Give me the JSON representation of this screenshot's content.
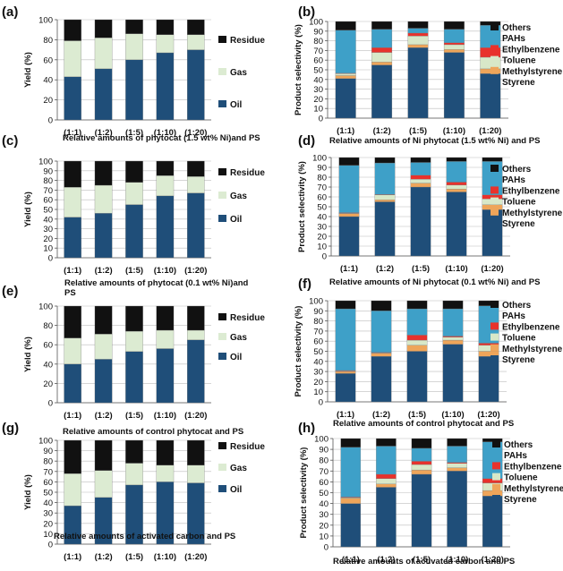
{
  "figure": {
    "panels": [
      {
        "label": "(a)",
        "chart": 0
      },
      {
        "label": "(b)",
        "chart": 1
      },
      {
        "label": "(c)",
        "chart": 2
      },
      {
        "label": "(d)",
        "chart": 3
      },
      {
        "label": "(e)",
        "chart": 4
      },
      {
        "label": "(f)",
        "chart": 5
      },
      {
        "label": "(g)",
        "chart": 6
      },
      {
        "label": "(h)",
        "chart": 7
      }
    ]
  },
  "colors": {
    "Residue": "#111111",
    "Gas": "#dcebd2",
    "Oil": "#1f4e79",
    "Others": "#111111",
    "PAHs": "#3ea0c8",
    "Ethylbenzene": "#e8322c",
    "Toluene": "#d8e8c8",
    "Methylstyrene": "#eea55a",
    "Styrene": "#1f4e79"
  },
  "chart_data": [
    {
      "type": "bar",
      "stacked": true,
      "title": "(a)",
      "xlabel": "Relative amounts of phytocat (1.5 wt% Ni)and PS",
      "ylabel": "Yield (%)",
      "ylim": [
        0,
        100
      ],
      "yticks": [
        0,
        20,
        40,
        60,
        80,
        100
      ],
      "categories": [
        "(1:1)",
        "(1:2)",
        "(1:5)",
        "(1:10)",
        "(1:20)"
      ],
      "series": [
        {
          "name": "Oil",
          "values": [
            43,
            51,
            60,
            67,
            70
          ]
        },
        {
          "name": "Gas",
          "values": [
            36,
            31,
            26,
            18,
            15
          ]
        },
        {
          "name": "Residue",
          "values": [
            21,
            18,
            14,
            15,
            15
          ]
        }
      ]
    },
    {
      "type": "bar",
      "stacked": true,
      "title": "(b)",
      "xlabel": "Relative amounts of Ni phytocat (1.5 wt% Ni) and PS",
      "ylabel": "Product selectivity (%)",
      "ylim": [
        0,
        100
      ],
      "yticks": [
        0,
        10,
        20,
        30,
        40,
        50,
        60,
        70,
        80,
        90,
        100
      ],
      "categories": [
        "(1:1)",
        "(1:2)",
        "(1:5)",
        "(1:10)",
        "(1:20)"
      ],
      "series": [
        {
          "name": "Styrene",
          "values": [
            41,
            55,
            73,
            68,
            46
          ]
        },
        {
          "name": "Methylstyrene",
          "values": [
            3,
            3,
            3,
            3,
            5
          ]
        },
        {
          "name": "Toluene",
          "values": [
            2,
            10,
            9,
            5,
            12
          ]
        },
        {
          "name": "Ethylbenzene",
          "values": [
            0.5,
            5,
            3,
            2,
            10
          ]
        },
        {
          "name": "PAHs",
          "values": [
            44.5,
            19,
            5,
            14,
            23
          ]
        },
        {
          "name": "Others",
          "values": [
            9,
            8,
            7,
            8,
            4
          ]
        }
      ]
    },
    {
      "type": "bar",
      "stacked": true,
      "title": "(c)",
      "xlabel": "Relative amounts of phytocat (0.1 wt% Ni)and PS",
      "ylabel": "Yield (%)",
      "ylim": [
        0,
        100
      ],
      "yticks": [
        0,
        10,
        20,
        30,
        40,
        50,
        60,
        70,
        80,
        90,
        100
      ],
      "categories": [
        "(1:1)",
        "(1:2)",
        "(1:5)",
        "(1:10)",
        "(1:20)"
      ],
      "series": [
        {
          "name": "Oil",
          "values": [
            42,
            46,
            55,
            64,
            67
          ]
        },
        {
          "name": "Gas",
          "values": [
            31,
            29,
            23,
            21,
            17
          ]
        },
        {
          "name": "Residue",
          "values": [
            27,
            25,
            22,
            15,
            16
          ]
        }
      ]
    },
    {
      "type": "bar",
      "stacked": true,
      "title": "(d)",
      "xlabel": "Relative amounts of Ni phytocat (0.1 wt% Ni) and PS",
      "ylabel": "Product selectivity (%)",
      "ylim": [
        0,
        100
      ],
      "yticks": [
        0,
        10,
        20,
        30,
        40,
        50,
        60,
        70,
        80,
        90,
        100
      ],
      "categories": [
        "(1:1)",
        "(1:2)",
        "(1:5)",
        "(1:10)",
        "(1:20)"
      ],
      "series": [
        {
          "name": "Styrene",
          "values": [
            40,
            55,
            70,
            65,
            47
          ]
        },
        {
          "name": "Methylstyrene",
          "values": [
            3,
            2,
            4,
            3,
            5
          ]
        },
        {
          "name": "Toluene",
          "values": [
            0.5,
            5,
            4,
            4,
            6
          ]
        },
        {
          "name": "Ethylbenzene",
          "values": [
            0.5,
            0.5,
            4,
            3,
            4
          ]
        },
        {
          "name": "PAHs",
          "values": [
            48,
            32,
            13,
            21,
            34
          ]
        },
        {
          "name": "Others",
          "values": [
            8,
            5.5,
            5,
            4,
            4
          ]
        }
      ]
    },
    {
      "type": "bar",
      "stacked": true,
      "title": "(e)",
      "xlabel": "Relative amounts of control phytocat and PS",
      "ylabel": "Yield (%)",
      "ylim": [
        0,
        100
      ],
      "yticks": [
        0,
        20,
        40,
        60,
        80,
        100
      ],
      "categories": [
        "(1:1)",
        "(1:2)",
        "(1:5)",
        "(1:10)",
        "(1:20)"
      ],
      "series": [
        {
          "name": "Oil",
          "values": [
            40,
            45,
            53,
            56,
            65
          ]
        },
        {
          "name": "Gas",
          "values": [
            27,
            26,
            21,
            19,
            10
          ]
        },
        {
          "name": "Residue",
          "values": [
            33,
            29,
            26,
            25,
            25
          ]
        }
      ]
    },
    {
      "type": "bar",
      "stacked": true,
      "title": "(f)",
      "xlabel": "Relative amounts of control phytocat and PS",
      "ylabel": "Product selectivity (%)",
      "ylim": [
        0,
        100
      ],
      "yticks": [
        0,
        10,
        20,
        30,
        40,
        50,
        60,
        70,
        80,
        90,
        100
      ],
      "categories": [
        "(1:1)",
        "(1:2)",
        "(1:5)",
        "(1:10)",
        "(1:20)"
      ],
      "series": [
        {
          "name": "Styrene",
          "values": [
            28,
            45,
            50,
            57,
            45
          ]
        },
        {
          "name": "Methylstyrene",
          "values": [
            2,
            3,
            6,
            4,
            5
          ]
        },
        {
          "name": "Toluene",
          "values": [
            0.5,
            0.5,
            5,
            3,
            6
          ]
        },
        {
          "name": "Ethylbenzene",
          "values": [
            0.5,
            0.5,
            5,
            1,
            2
          ]
        },
        {
          "name": "PAHs",
          "values": [
            61,
            41,
            26,
            27,
            37
          ]
        },
        {
          "name": "Others",
          "values": [
            8,
            10,
            8,
            8,
            5
          ]
        }
      ]
    },
    {
      "type": "bar",
      "stacked": true,
      "title": "(g)",
      "xlabel": "Relative amounts of activated carbon and PS",
      "ylabel": "Yield (%)",
      "ylim": [
        0,
        100
      ],
      "yticks": [
        0,
        10,
        20,
        30,
        40,
        50,
        60,
        70,
        80,
        90,
        100
      ],
      "categories": [
        "(1:1)",
        "(1:2)",
        "(1:5)",
        "(1:10)",
        "(1:20)"
      ],
      "series": [
        {
          "name": "Oil",
          "values": [
            37,
            45,
            57,
            60,
            59
          ]
        },
        {
          "name": "Gas",
          "values": [
            31,
            26,
            21,
            16,
            17
          ]
        },
        {
          "name": "Residue",
          "values": [
            32,
            29,
            22,
            24,
            24
          ]
        }
      ]
    },
    {
      "type": "bar",
      "stacked": true,
      "title": "(h)",
      "xlabel": "Relative amounts of activated carbon and PS",
      "ylabel": "Product selectivity (%)",
      "ylim": [
        0,
        100
      ],
      "yticks": [
        0,
        10,
        20,
        30,
        40,
        50,
        60,
        70,
        80,
        90,
        100
      ],
      "categories": [
        "(1:1)",
        "(1:2)",
        "(1:5)",
        "(1:10)",
        "(1:20)"
      ],
      "series": [
        {
          "name": "Styrene",
          "values": [
            40,
            55,
            67,
            70,
            47
          ]
        },
        {
          "name": "Methylstyrene",
          "values": [
            5,
            3,
            4,
            3,
            5
          ]
        },
        {
          "name": "Toluene",
          "values": [
            0.5,
            5,
            5,
            4,
            7
          ]
        },
        {
          "name": "Ethylbenzene",
          "values": [
            0.5,
            4,
            3,
            1,
            4
          ]
        },
        {
          "name": "PAHs",
          "values": [
            46,
            26,
            12,
            15,
            34
          ]
        },
        {
          "name": "Others",
          "values": [
            8,
            7,
            9,
            7,
            3
          ]
        }
      ]
    }
  ]
}
